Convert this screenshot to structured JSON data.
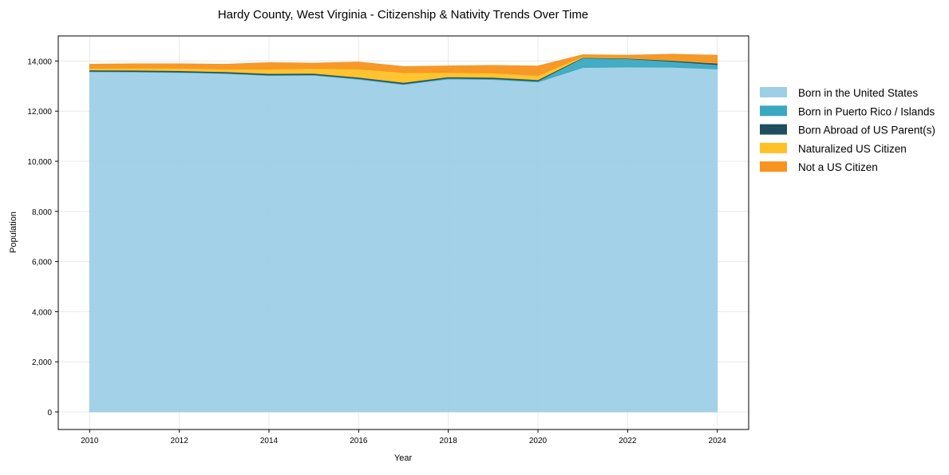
{
  "chart_data": {
    "type": "area",
    "stacked": true,
    "title": "Hardy County, West Virginia - Citizenship & Nativity Trends Over Time",
    "xlabel": "Year",
    "ylabel": "Population",
    "x": [
      2010,
      2011,
      2012,
      2013,
      2014,
      2015,
      2016,
      2017,
      2018,
      2019,
      2020,
      2021,
      2022,
      2023,
      2024
    ],
    "xticks": [
      2010,
      2012,
      2014,
      2016,
      2018,
      2020,
      2022,
      2024
    ],
    "yticks": [
      0,
      2000,
      4000,
      6000,
      8000,
      10000,
      12000,
      14000
    ],
    "ytick_labels": [
      "0",
      "2,000",
      "4,000",
      "6,000",
      "8,000",
      "10,000",
      "12,000",
      "14,000"
    ],
    "ylim": [
      -700,
      15000
    ],
    "xlim": [
      2009.3,
      2024.7
    ],
    "grid": true,
    "legend_position": "right",
    "series": [
      {
        "name": "Born in the United States",
        "color": "#9ecfe6",
        "values": [
          13570,
          13560,
          13540,
          13500,
          13420,
          13430,
          13270,
          13060,
          13280,
          13260,
          13160,
          13740,
          13760,
          13750,
          13680
        ]
      },
      {
        "name": "Born in Puerto Rico / Islands",
        "color": "#3aa8c1",
        "values": [
          20,
          20,
          20,
          20,
          25,
          25,
          30,
          30,
          35,
          35,
          40,
          380,
          330,
          230,
          170
        ]
      },
      {
        "name": "Born Abroad of US Parent(s)",
        "color": "#1f4e5f",
        "values": [
          50,
          50,
          50,
          50,
          50,
          50,
          50,
          50,
          50,
          50,
          50,
          20,
          20,
          40,
          60
        ]
      },
      {
        "name": "Naturalized US Citizen",
        "color": "#ffc125",
        "values": [
          70,
          90,
          100,
          110,
          180,
          200,
          330,
          400,
          180,
          180,
          170,
          40,
          20,
          20,
          20
        ]
      },
      {
        "name": "Not a US Citizen",
        "color": "#f7931e",
        "values": [
          160,
          170,
          180,
          190,
          260,
          210,
          280,
          240,
          260,
          300,
          380,
          70,
          100,
          230,
          300
        ]
      }
    ]
  }
}
